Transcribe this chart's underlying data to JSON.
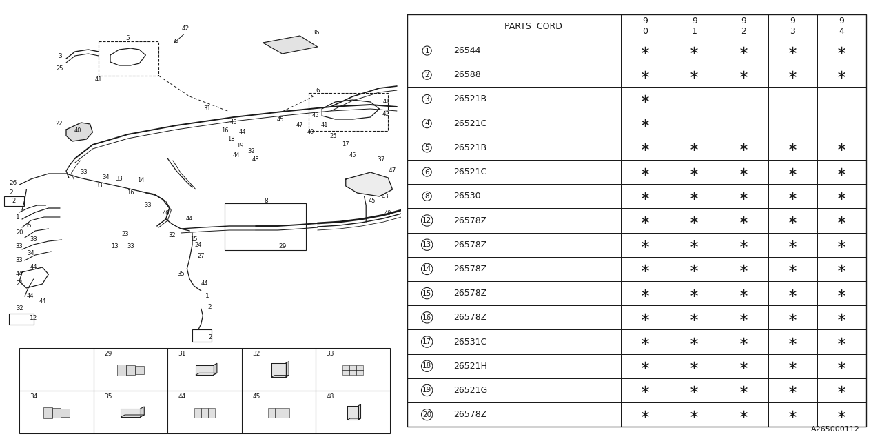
{
  "bg_color": "#ffffff",
  "line_color": "#1a1a1a",
  "diagram_code": "A265000112",
  "table": {
    "rows": [
      [
        "1",
        "26544",
        true,
        true,
        true,
        true,
        true
      ],
      [
        "2",
        "26588",
        true,
        true,
        true,
        true,
        true
      ],
      [
        "3",
        "26521B",
        true,
        false,
        false,
        false,
        false
      ],
      [
        "4",
        "26521C",
        true,
        false,
        false,
        false,
        false
      ],
      [
        "5",
        "26521B",
        true,
        true,
        true,
        true,
        true
      ],
      [
        "6",
        "26521C",
        true,
        true,
        true,
        true,
        true
      ],
      [
        "8",
        "26530",
        true,
        true,
        true,
        true,
        true
      ],
      [
        "12",
        "26578Z",
        true,
        true,
        true,
        true,
        true
      ],
      [
        "13",
        "26578Z",
        true,
        true,
        true,
        true,
        true
      ],
      [
        "14",
        "26578Z",
        true,
        true,
        true,
        true,
        true
      ],
      [
        "15",
        "26578Z",
        true,
        true,
        true,
        true,
        true
      ],
      [
        "16",
        "26578Z",
        true,
        true,
        true,
        true,
        true
      ],
      [
        "17",
        "26531C",
        true,
        true,
        true,
        true,
        true
      ],
      [
        "18",
        "26521H",
        true,
        true,
        true,
        true,
        true
      ],
      [
        "19",
        "26521G",
        true,
        true,
        true,
        true,
        true
      ],
      [
        "20",
        "26578Z",
        true,
        true,
        true,
        true,
        true
      ]
    ],
    "year_cols": [
      "9\n0",
      "9\n1",
      "9\n2",
      "9\n3",
      "9\n4"
    ]
  }
}
